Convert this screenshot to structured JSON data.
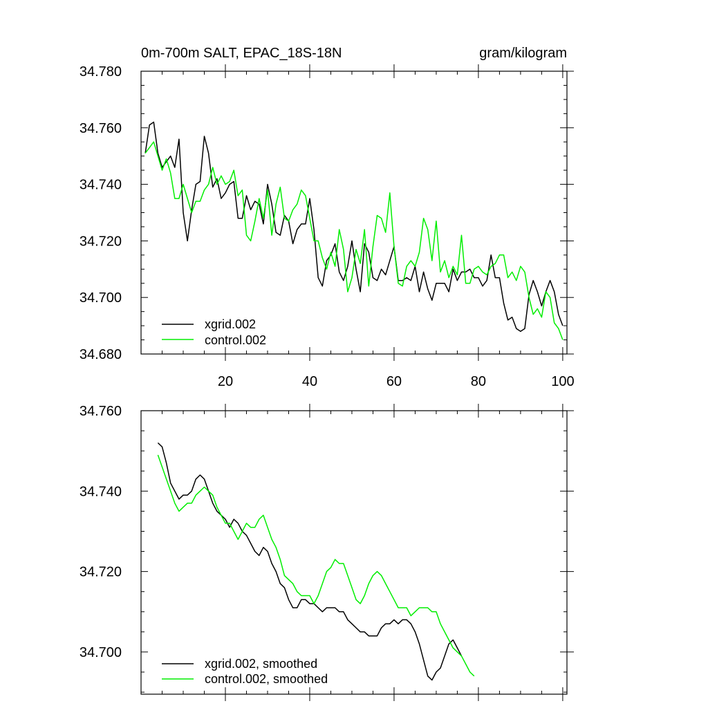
{
  "chart_data": [
    {
      "type": "line",
      "title": "0m-700m SALT, EPAC_18S-18N",
      "units": "gram/kilogram",
      "xlim": [
        0,
        101
      ],
      "ylim": [
        34.68,
        34.78
      ],
      "xticks": [
        20,
        40,
        60,
        80,
        100
      ],
      "yticks": [
        34.68,
        34.7,
        34.72,
        34.74,
        34.76,
        34.78
      ],
      "ytick_labels": [
        "34.680",
        "34.700",
        "34.720",
        "34.740",
        "34.760",
        "34.780"
      ],
      "grid": false,
      "legend_position": "bottom-left",
      "series": [
        {
          "name": "xgrid.002",
          "color": "#000000",
          "x_start": 1,
          "values": [
            34.751,
            34.761,
            34.762,
            34.751,
            34.746,
            34.748,
            34.75,
            34.746,
            34.756,
            34.73,
            34.72,
            34.731,
            34.74,
            34.741,
            34.757,
            34.751,
            34.739,
            34.742,
            34.735,
            34.737,
            34.74,
            34.741,
            34.728,
            34.728,
            34.736,
            34.731,
            34.734,
            34.733,
            34.726,
            34.74,
            34.733,
            34.723,
            34.722,
            34.729,
            34.727,
            34.719,
            34.724,
            34.726,
            34.726,
            34.735,
            34.724,
            34.707,
            34.704,
            34.713,
            34.715,
            34.719,
            34.709,
            34.706,
            34.711,
            34.72,
            34.71,
            34.702,
            34.719,
            34.716,
            34.707,
            34.706,
            34.71,
            34.708,
            34.713,
            34.718,
            34.706,
            34.706,
            34.707,
            34.706,
            34.711,
            34.702,
            34.709,
            34.703,
            34.699,
            34.705,
            34.705,
            34.705,
            34.702,
            34.71,
            34.706,
            34.709,
            34.709,
            34.71,
            34.707,
            34.707,
            34.704,
            34.706,
            34.715,
            34.707,
            34.707,
            34.698,
            34.692,
            34.693,
            34.689,
            34.688,
            34.689,
            34.701,
            34.706,
            34.702,
            34.697,
            34.702,
            34.706,
            34.702,
            34.694,
            34.69
          ]
        },
        {
          "name": "control.002",
          "color": "#00ee00",
          "x_start": 1,
          "values": [
            34.751,
            34.753,
            34.755,
            34.75,
            34.745,
            34.749,
            34.744,
            34.735,
            34.735,
            34.74,
            34.735,
            34.73,
            34.734,
            34.734,
            34.738,
            34.74,
            34.746,
            34.74,
            34.743,
            34.74,
            34.741,
            34.745,
            34.736,
            34.738,
            34.722,
            34.72,
            34.727,
            34.735,
            34.728,
            34.738,
            34.722,
            34.733,
            34.739,
            34.728,
            34.727,
            34.731,
            34.733,
            34.738,
            34.736,
            34.728,
            34.72,
            34.72,
            34.714,
            34.71,
            34.716,
            34.711,
            34.724,
            34.717,
            34.702,
            34.707,
            34.717,
            34.712,
            34.724,
            34.704,
            34.718,
            34.729,
            34.728,
            34.723,
            34.737,
            34.718,
            34.705,
            34.704,
            34.711,
            34.713,
            34.711,
            34.716,
            34.728,
            34.724,
            34.713,
            34.727,
            34.709,
            34.713,
            34.707,
            34.711,
            34.708,
            34.722,
            34.705,
            34.705,
            34.71,
            34.711,
            34.709,
            34.708,
            34.711,
            34.712,
            34.715,
            34.715,
            34.707,
            34.709,
            34.706,
            34.711,
            34.709,
            34.7,
            34.694,
            34.696,
            34.693,
            34.702,
            34.7,
            34.691,
            34.689,
            34.685
          ]
        }
      ]
    },
    {
      "type": "line",
      "title": "",
      "xlim": [
        0,
        101
      ],
      "ylim": [
        34.6895,
        34.76
      ],
      "xticks": [
        20,
        40,
        60,
        80,
        100
      ],
      "yticks": [
        34.7,
        34.72,
        34.74,
        34.76
      ],
      "ytick_labels": [
        "34.700",
        "34.720",
        "34.740",
        "34.760"
      ],
      "grid": false,
      "legend_position": "bottom-left",
      "series": [
        {
          "name": "xgrid.002, smoothed",
          "color": "#000000",
          "x_start": 4,
          "values": [
            34.752,
            34.751,
            34.747,
            34.742,
            34.74,
            34.738,
            34.739,
            34.739,
            34.74,
            34.743,
            34.744,
            34.743,
            34.74,
            34.737,
            34.735,
            34.734,
            34.733,
            34.731,
            34.733,
            34.732,
            34.73,
            34.729,
            34.727,
            34.725,
            34.724,
            34.726,
            34.725,
            34.722,
            34.72,
            34.717,
            34.716,
            34.713,
            34.711,
            34.711,
            34.713,
            34.713,
            34.712,
            34.712,
            34.711,
            34.71,
            34.711,
            34.711,
            34.711,
            34.71,
            34.71,
            34.708,
            34.707,
            34.706,
            34.705,
            34.705,
            34.704,
            34.704,
            34.704,
            34.706,
            34.707,
            34.707,
            34.708,
            34.707,
            34.708,
            34.708,
            34.707,
            34.705,
            34.702,
            34.698,
            34.694,
            34.693,
            34.695,
            34.696,
            34.699,
            34.702,
            34.703,
            34.701,
            34.699
          ]
        },
        {
          "name": "control.002, smoothed",
          "color": "#00ee00",
          "x_start": 4,
          "values": [
            34.749,
            34.746,
            34.743,
            34.74,
            34.737,
            34.735,
            34.736,
            34.737,
            34.737,
            34.739,
            34.74,
            34.741,
            34.74,
            34.739,
            34.736,
            34.734,
            34.732,
            34.732,
            34.73,
            34.728,
            34.73,
            34.732,
            34.731,
            34.731,
            34.733,
            34.734,
            34.731,
            34.728,
            34.726,
            34.723,
            34.719,
            34.718,
            34.717,
            34.715,
            34.714,
            34.714,
            34.714,
            34.712,
            34.714,
            34.717,
            34.72,
            34.721,
            34.723,
            34.722,
            34.722,
            34.719,
            34.716,
            34.713,
            34.712,
            34.714,
            34.717,
            34.719,
            34.72,
            34.719,
            34.717,
            34.715,
            34.713,
            34.711,
            34.711,
            34.711,
            34.709,
            34.71,
            34.711,
            34.711,
            34.711,
            34.71,
            34.71,
            34.707,
            34.705,
            34.703,
            34.701,
            34.7,
            34.699,
            34.697,
            34.695,
            34.694
          ]
        }
      ]
    }
  ]
}
